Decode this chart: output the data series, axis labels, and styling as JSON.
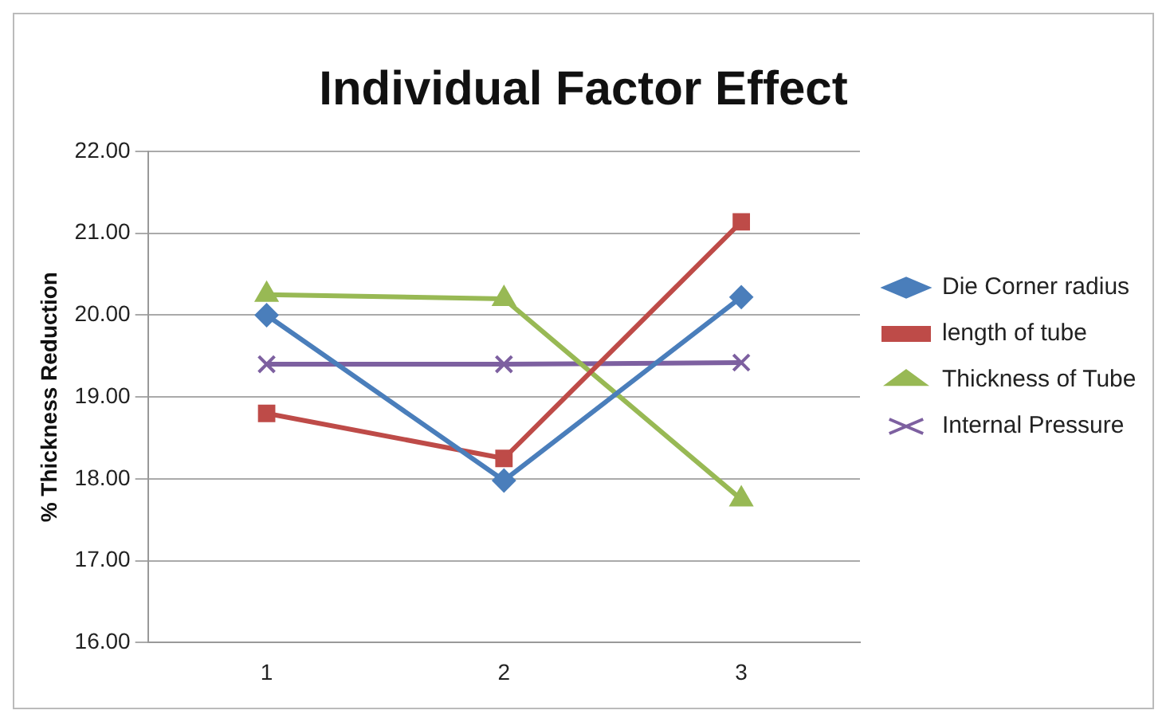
{
  "chart_data": {
    "type": "line",
    "title": "Individual Factor Effect",
    "ylabel": "% Thickness Reduction",
    "categories": [
      "1",
      "2",
      "3"
    ],
    "series": [
      {
        "name": "Die Corner radius",
        "color": "#4a7ebb",
        "marker": "diamond",
        "values": [
          20.0,
          17.98,
          20.22
        ]
      },
      {
        "name": "length of tube",
        "color": "#be4b48",
        "marker": "square",
        "values": [
          18.8,
          18.25,
          21.14
        ]
      },
      {
        "name": "Thickness of Tube",
        "color": "#98b954",
        "marker": "triangle",
        "values": [
          20.25,
          20.2,
          17.75
        ]
      },
      {
        "name": "Internal Pressure",
        "color": "#7d60a0",
        "marker": "cross",
        "values": [
          19.4,
          19.4,
          19.42
        ]
      }
    ],
    "ylim": [
      16,
      22
    ],
    "yticks": [
      {
        "value": 16,
        "label": "16.00"
      },
      {
        "value": 17,
        "label": "17.00"
      },
      {
        "value": 18,
        "label": "18.00"
      },
      {
        "value": 19,
        "label": "19.00"
      },
      {
        "value": 20,
        "label": "20.00"
      },
      {
        "value": 21,
        "label": "21.00"
      },
      {
        "value": 22,
        "label": "22.00"
      }
    ],
    "grid": "y",
    "legend": "right",
    "line_style": "solid"
  }
}
